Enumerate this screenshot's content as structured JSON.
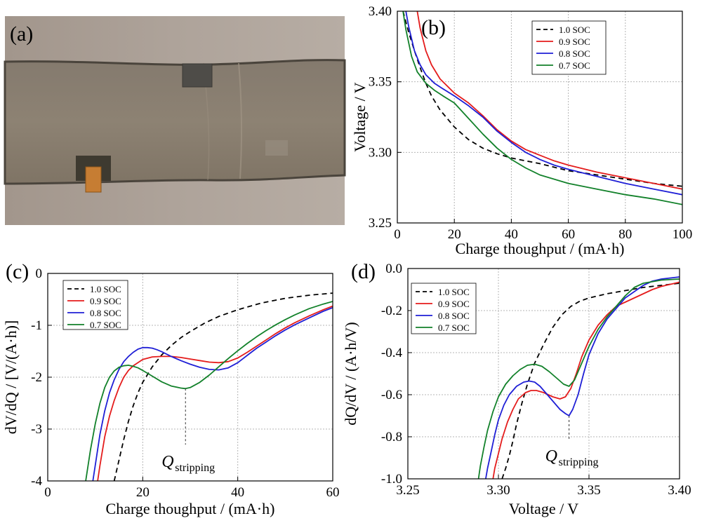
{
  "figure": {
    "panels": [
      "(a)",
      "(b)",
      "(c)",
      "(d)"
    ],
    "colors": {
      "1.0 SOC": "#000000",
      "0.9 SOC": "#e41c1c",
      "0.8 SOC": "#1f1fd6",
      "0.7 SOC": "#12812a",
      "grid": "#b5b5b5"
    }
  },
  "photo": {
    "panel_label": "(a)",
    "description_icon": "pouch-cell-photo-icon"
  },
  "chart_data": [
    {
      "id": "b",
      "panel_label": "(b)",
      "type": "line",
      "xlabel": "Charge thoughput / (mA·h)",
      "ylabel": "Voltage / V",
      "xlim": [
        0,
        100
      ],
      "ylim": [
        3.25,
        3.4
      ],
      "xticks": [
        0,
        20,
        40,
        60,
        80,
        100
      ],
      "xtick_labels": [
        "0",
        "20",
        "40",
        "60",
        "80",
        "100"
      ],
      "yticks": [
        3.25,
        3.3,
        3.35,
        3.4
      ],
      "ytick_labels": [
        "3.25",
        "3.30",
        "3.35",
        "3.40"
      ],
      "grid": true,
      "legend_position": "top-right",
      "series": [
        {
          "name": "1.0 SOC",
          "color": "#000000",
          "dash": true,
          "x": [
            2,
            4,
            6,
            8,
            10,
            12,
            15,
            20,
            25,
            30,
            35,
            40,
            50,
            60,
            70,
            80,
            90,
            100
          ],
          "y": [
            3.4,
            3.385,
            3.372,
            3.36,
            3.349,
            3.34,
            3.33,
            3.318,
            3.309,
            3.303,
            3.299,
            3.296,
            3.292,
            3.287,
            3.284,
            3.281,
            3.278,
            3.276
          ]
        },
        {
          "name": "0.9 SOC",
          "color": "#e41c1c",
          "x": [
            7,
            8,
            10,
            12,
            15,
            18,
            20,
            25,
            30,
            35,
            40,
            45,
            50,
            55,
            60,
            70,
            80,
            90,
            100
          ],
          "y": [
            3.4,
            3.388,
            3.372,
            3.362,
            3.352,
            3.346,
            3.342,
            3.335,
            3.326,
            3.316,
            3.308,
            3.302,
            3.298,
            3.294,
            3.291,
            3.286,
            3.282,
            3.278,
            3.274
          ]
        },
        {
          "name": "0.8 SOC",
          "color": "#1f1fd6",
          "x": [
            3,
            4,
            6,
            8,
            10,
            13,
            16,
            20,
            25,
            30,
            35,
            40,
            45,
            50,
            55,
            60,
            70,
            80,
            90,
            100
          ],
          "y": [
            3.4,
            3.389,
            3.372,
            3.362,
            3.355,
            3.349,
            3.345,
            3.34,
            3.333,
            3.325,
            3.315,
            3.307,
            3.3,
            3.295,
            3.291,
            3.288,
            3.283,
            3.278,
            3.274,
            3.27
          ]
        },
        {
          "name": "0.7 SOC",
          "color": "#12812a",
          "x": [
            2,
            3,
            5,
            7,
            10,
            13,
            16,
            20,
            25,
            30,
            35,
            40,
            45,
            50,
            60,
            70,
            80,
            90,
            100
          ],
          "y": [
            3.4,
            3.387,
            3.368,
            3.357,
            3.349,
            3.344,
            3.34,
            3.335,
            3.324,
            3.313,
            3.303,
            3.295,
            3.289,
            3.284,
            3.278,
            3.274,
            3.27,
            3.267,
            3.263
          ]
        }
      ]
    },
    {
      "id": "c",
      "panel_label": "(c)",
      "type": "line",
      "xlabel": "Charge thoughput / (mA·h)",
      "ylabel": "dV/dQ / [V/(A·h)]",
      "xlim": [
        0,
        60
      ],
      "ylim": [
        -4,
        0
      ],
      "xticks": [
        0,
        20,
        40,
        60
      ],
      "xtick_labels": [
        "0",
        "20",
        "40",
        "60"
      ],
      "yticks": [
        -4,
        -3,
        -2,
        -1,
        0
      ],
      "ytick_labels": [
        "-4",
        "-3",
        "-2",
        "-1",
        "0"
      ],
      "grid": true,
      "legend_position": "top-left",
      "annotation": {
        "text": "Q",
        "subscript": "stripping",
        "x": 29,
        "y_from": -2.22,
        "y_to": -3.3
      },
      "series": [
        {
          "name": "1.0 SOC",
          "color": "#000000",
          "dash": true,
          "x": [
            14,
            15,
            16,
            17,
            18,
            19,
            20,
            22,
            24,
            26,
            28,
            30,
            33,
            36,
            40,
            45,
            50,
            55,
            60
          ],
          "y": [
            -4.0,
            -3.6,
            -3.2,
            -2.85,
            -2.55,
            -2.3,
            -2.1,
            -1.8,
            -1.57,
            -1.39,
            -1.24,
            -1.12,
            -0.96,
            -0.83,
            -0.7,
            -0.57,
            -0.48,
            -0.42,
            -0.38
          ]
        },
        {
          "name": "0.9 SOC",
          "color": "#e41c1c",
          "x": [
            10.5,
            11,
            12,
            13,
            14,
            15,
            16,
            17,
            18,
            20,
            22,
            24,
            26,
            28,
            30,
            32,
            34,
            36,
            38,
            40,
            42,
            44,
            46,
            48,
            50,
            52,
            55,
            58,
            60
          ],
          "y": [
            -4.0,
            -3.7,
            -3.15,
            -2.75,
            -2.45,
            -2.2,
            -2.0,
            -1.87,
            -1.78,
            -1.66,
            -1.61,
            -1.6,
            -1.6,
            -1.62,
            -1.65,
            -1.68,
            -1.71,
            -1.72,
            -1.7,
            -1.63,
            -1.52,
            -1.4,
            -1.28,
            -1.16,
            -1.05,
            -0.95,
            -0.82,
            -0.7,
            -0.63
          ]
        },
        {
          "name": "0.8 SOC",
          "color": "#1f1fd6",
          "x": [
            9.5,
            10,
            11,
            12,
            13,
            14,
            15,
            16,
            17,
            18,
            19,
            20,
            21,
            22,
            23,
            24,
            26,
            28,
            30,
            32,
            34,
            36,
            38,
            40,
            42,
            44,
            46,
            48,
            50,
            52,
            55,
            58,
            60
          ],
          "y": [
            -4.0,
            -3.7,
            -3.1,
            -2.65,
            -2.3,
            -2.05,
            -1.85,
            -1.7,
            -1.6,
            -1.52,
            -1.46,
            -1.43,
            -1.43,
            -1.44,
            -1.47,
            -1.51,
            -1.6,
            -1.68,
            -1.75,
            -1.81,
            -1.85,
            -1.86,
            -1.82,
            -1.72,
            -1.58,
            -1.44,
            -1.32,
            -1.2,
            -1.09,
            -0.99,
            -0.86,
            -0.73,
            -0.66
          ]
        },
        {
          "name": "0.7 SOC",
          "color": "#12812a",
          "x": [
            8,
            8.5,
            9,
            10,
            11,
            12,
            13,
            14,
            15,
            16,
            17,
            18,
            19,
            20,
            22,
            24,
            26,
            28,
            29,
            30,
            32,
            34,
            36,
            38,
            40,
            42,
            44,
            46,
            48,
            50,
            52,
            55,
            58,
            60
          ],
          "y": [
            -4.0,
            -3.7,
            -3.4,
            -2.9,
            -2.5,
            -2.2,
            -2.0,
            -1.88,
            -1.81,
            -1.78,
            -1.77,
            -1.79,
            -1.82,
            -1.87,
            -1.98,
            -2.09,
            -2.17,
            -2.21,
            -2.22,
            -2.2,
            -2.1,
            -1.96,
            -1.8,
            -1.64,
            -1.49,
            -1.35,
            -1.22,
            -1.1,
            -0.99,
            -0.89,
            -0.8,
            -0.68,
            -0.59,
            -0.54
          ]
        }
      ]
    },
    {
      "id": "d",
      "panel_label": "(d)",
      "type": "line",
      "xlabel": "Voltage / V",
      "ylabel": "dQ/dV / (A·h/V)",
      "xlim": [
        3.25,
        3.4
      ],
      "ylim": [
        -1.0,
        0.0
      ],
      "xticks": [
        3.25,
        3.3,
        3.35,
        3.4
      ],
      "xtick_labels": [
        "3.25",
        "3.30",
        "3.35",
        "3.40"
      ],
      "yticks": [
        -1.0,
        -0.8,
        -0.6,
        -0.4,
        -0.2,
        0.0
      ],
      "ytick_labels": [
        "-1.0",
        "-0.8",
        "-0.6",
        "-0.4",
        "-0.2",
        "0.0"
      ],
      "grid": true,
      "legend_position": "top-left",
      "annotation": {
        "text": "Q",
        "subscript": "stripping",
        "x": 3.339,
        "y_from": -0.7,
        "y_to": -0.81
      },
      "series": [
        {
          "name": "1.0 SOC",
          "color": "#000000",
          "dash": true,
          "x": [
            3.302,
            3.304,
            3.306,
            3.308,
            3.31,
            3.313,
            3.316,
            3.32,
            3.325,
            3.33,
            3.335,
            3.34,
            3.345,
            3.35,
            3.36,
            3.37,
            3.38,
            3.39,
            3.4
          ],
          "y": [
            -1.0,
            -0.95,
            -0.89,
            -0.82,
            -0.74,
            -0.64,
            -0.55,
            -0.45,
            -0.36,
            -0.28,
            -0.22,
            -0.18,
            -0.155,
            -0.14,
            -0.12,
            -0.105,
            -0.09,
            -0.08,
            -0.07
          ]
        },
        {
          "name": "0.9 SOC",
          "color": "#e41c1c",
          "x": [
            3.297,
            3.298,
            3.3,
            3.302,
            3.305,
            3.308,
            3.311,
            3.315,
            3.318,
            3.321,
            3.325,
            3.33,
            3.334,
            3.337,
            3.34,
            3.343,
            3.346,
            3.35,
            3.355,
            3.36,
            3.365,
            3.37,
            3.375,
            3.38,
            3.385,
            3.39,
            3.395,
            3.4
          ],
          "y": [
            -1.0,
            -0.95,
            -0.88,
            -0.81,
            -0.73,
            -0.67,
            -0.62,
            -0.59,
            -0.58,
            -0.58,
            -0.59,
            -0.61,
            -0.62,
            -0.61,
            -0.57,
            -0.5,
            -0.42,
            -0.34,
            -0.27,
            -0.22,
            -0.18,
            -0.16,
            -0.14,
            -0.12,
            -0.1,
            -0.085,
            -0.075,
            -0.065
          ]
        },
        {
          "name": "0.8 SOC",
          "color": "#1f1fd6",
          "x": [
            3.293,
            3.294,
            3.296,
            3.298,
            3.3,
            3.303,
            3.306,
            3.31,
            3.314,
            3.317,
            3.32,
            3.323,
            3.326,
            3.33,
            3.334,
            3.337,
            3.339,
            3.341,
            3.344,
            3.347,
            3.35,
            3.355,
            3.36,
            3.365,
            3.37,
            3.375,
            3.38,
            3.385,
            3.39,
            3.395,
            3.4
          ],
          "y": [
            -1.0,
            -0.95,
            -0.87,
            -0.79,
            -0.72,
            -0.65,
            -0.6,
            -0.56,
            -0.54,
            -0.535,
            -0.54,
            -0.56,
            -0.59,
            -0.63,
            -0.67,
            -0.69,
            -0.7,
            -0.67,
            -0.6,
            -0.5,
            -0.41,
            -0.31,
            -0.24,
            -0.19,
            -0.14,
            -0.11,
            -0.08,
            -0.06,
            -0.05,
            -0.045,
            -0.04
          ]
        },
        {
          "name": "0.7 SOC",
          "color": "#12812a",
          "x": [
            3.289,
            3.29,
            3.292,
            3.294,
            3.297,
            3.3,
            3.304,
            3.308,
            3.312,
            3.316,
            3.32,
            3.324,
            3.328,
            3.332,
            3.336,
            3.339,
            3.342,
            3.345,
            3.35,
            3.355,
            3.36,
            3.365,
            3.37,
            3.375,
            3.38,
            3.39,
            3.4
          ],
          "y": [
            -1.0,
            -0.94,
            -0.85,
            -0.77,
            -0.68,
            -0.61,
            -0.55,
            -0.51,
            -0.48,
            -0.46,
            -0.455,
            -0.465,
            -0.49,
            -0.52,
            -0.55,
            -0.56,
            -0.53,
            -0.47,
            -0.37,
            -0.29,
            -0.23,
            -0.18,
            -0.13,
            -0.09,
            -0.07,
            -0.055,
            -0.05
          ]
        }
      ]
    }
  ]
}
